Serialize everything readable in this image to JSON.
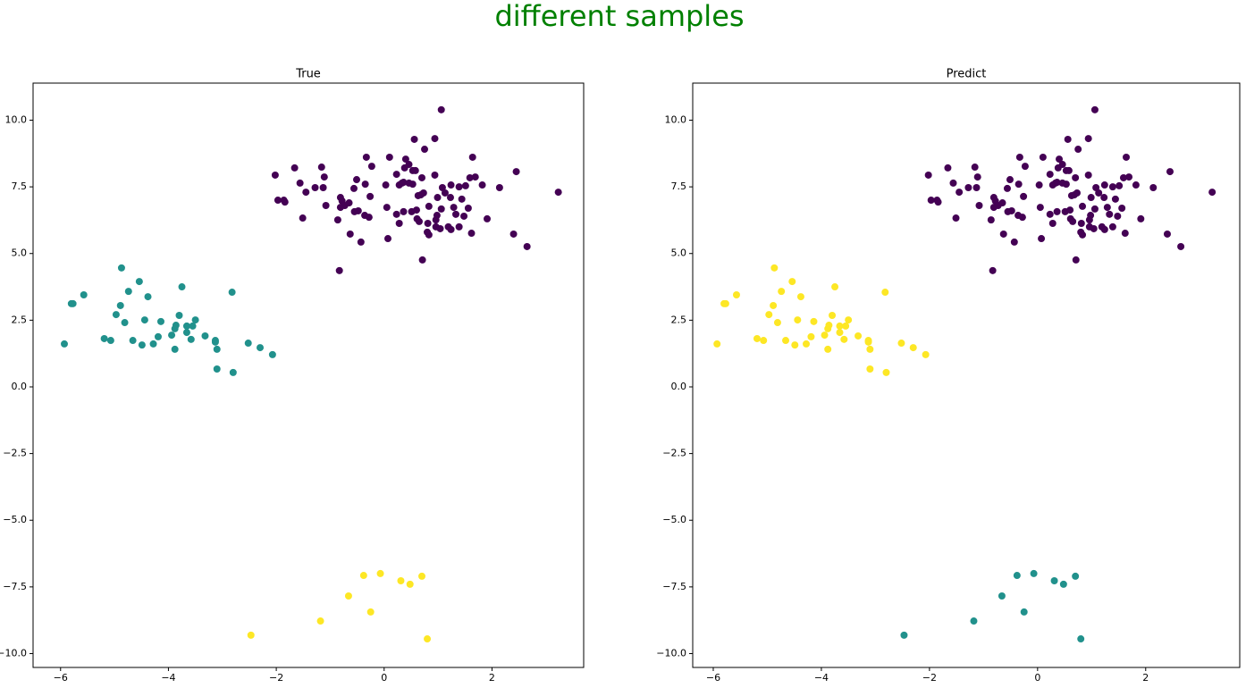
{
  "title": "different samples",
  "chart_data": [
    {
      "type": "scatter",
      "title": "True",
      "xlim": [
        -6.51,
        3.7
      ],
      "ylim": [
        -10.52,
        11.39
      ],
      "xticks": [
        {
          "value": -6,
          "label": "−6"
        },
        {
          "value": -4,
          "label": "−4"
        },
        {
          "value": -2,
          "label": "−2"
        },
        0,
        2
      ],
      "yticks": [
        {
          "value": 10,
          "label": "10.0"
        },
        7.5,
        {
          "value": 5,
          "label": "5.0"
        },
        2.5,
        {
          "value": 0,
          "label": "0.0"
        },
        {
          "value": -2.5,
          "label": "−2.5"
        },
        {
          "value": -5,
          "label": "−5.0"
        },
        {
          "value": -7.5,
          "label": "−7.5"
        },
        {
          "value": -10,
          "label": "−10.0"
        }
      ],
      "series": [
        {
          "color": "#440154",
          "x": [
            1.06,
            0.56,
            0.94,
            0.75,
            1.64,
            -0.33,
            0.1,
            0.4,
            -1.66,
            -1.16,
            -0.23,
            0.38,
            0.46,
            0.53,
            0.58,
            2.45,
            0.23,
            -2.02,
            -1.11,
            0.94,
            1.69,
            0.7,
            0.36,
            -1.56,
            -0.51,
            -0.35,
            0.03,
            0.28,
            0.33,
            0.46,
            0.53,
            1.08,
            1.24,
            1.39,
            1.51,
            1.59,
            1.82,
            2.14,
            -1.28,
            -1.13,
            -1.45,
            3.23,
            -1.86,
            -1.84,
            -0.56,
            -0.26,
            0.73,
            0.63,
            0.68,
            1.13,
            0.99,
            1.44,
            1.23,
            -0.81,
            -0.78,
            -0.73,
            -0.65,
            -0.81,
            -1.08,
            -0.86,
            -0.48,
            -0.55,
            -0.36,
            -0.28,
            0.05,
            0.23,
            0.36,
            0.51,
            0.6,
            0.61,
            0.65,
            0.83,
            0.98,
            1.06,
            1.29,
            1.33,
            1.48,
            1.56,
            1.91,
            -1.97,
            -1.51,
            0.28,
            0.81,
            0.96,
            1.19,
            0.96,
            1.04,
            1.39,
            0.8,
            0.83,
            1.62,
            -0.63,
            0.07,
            -0.43,
            1.24,
            2.4,
            2.65,
            0.71,
            -0.83
          ],
          "y": [
            10.39,
            9.28,
            9.31,
            8.91,
            8.61,
            8.61,
            8.61,
            8.54,
            8.21,
            8.24,
            8.27,
            8.21,
            8.34,
            8.11,
            8.11,
            8.07,
            7.97,
            7.94,
            7.87,
            7.94,
            7.87,
            7.84,
            7.67,
            7.64,
            7.77,
            7.6,
            7.57,
            7.57,
            7.64,
            7.64,
            7.6,
            7.47,
            7.57,
            7.5,
            7.54,
            7.84,
            7.57,
            7.47,
            7.47,
            7.47,
            7.3,
            7.3,
            7.0,
            6.93,
            7.44,
            7.14,
            7.27,
            7.17,
            7.2,
            7.27,
            7.1,
            7.04,
            7.1,
            7.1,
            6.97,
            6.8,
            6.9,
            6.73,
            6.8,
            6.26,
            6.6,
            6.57,
            6.43,
            6.36,
            6.73,
            6.47,
            6.57,
            6.57,
            6.63,
            6.3,
            6.2,
            6.77,
            6.43,
            6.67,
            6.73,
            6.47,
            6.4,
            6.7,
            6.3,
            7.0,
            6.33,
            6.13,
            6.13,
            6.26,
            6.0,
            6.0,
            5.93,
            6.0,
            5.8,
            5.7,
            5.76,
            5.73,
            5.56,
            5.43,
            5.9,
            5.73,
            5.26,
            4.76,
            4.36
          ]
        },
        {
          "color": "#21918c",
          "x": [
            -5.93,
            -5.8,
            -5.77,
            -5.57,
            -5.19,
            -5.07,
            -4.97,
            -4.89,
            -4.87,
            -4.81,
            -4.74,
            -4.66,
            -4.54,
            -4.49,
            -4.44,
            -4.38,
            -4.28,
            -4.19,
            -4.14,
            -3.94,
            -3.88,
            -3.88,
            -3.86,
            -3.8,
            -3.75,
            -3.66,
            -3.66,
            -3.58,
            -3.55,
            -3.5,
            -3.32,
            -3.13,
            -3.13,
            -3.1,
            -3.1,
            -2.82,
            -2.8,
            -2.52,
            -2.3,
            -2.07
          ],
          "y": [
            1.61,
            3.12,
            3.12,
            3.45,
            1.81,
            1.74,
            2.71,
            3.05,
            4.46,
            2.41,
            3.58,
            1.74,
            3.95,
            1.57,
            2.51,
            3.38,
            1.61,
            1.88,
            2.45,
            1.94,
            2.18,
            1.41,
            2.31,
            2.68,
            3.75,
            2.28,
            2.04,
            1.78,
            2.28,
            2.51,
            1.91,
            1.74,
            1.68,
            1.41,
            0.67,
            3.55,
            0.54,
            1.64,
            1.47,
            1.21
          ]
        },
        {
          "color": "#fde725",
          "x": [
            -2.47,
            -1.18,
            -0.66,
            -0.38,
            -0.25,
            -0.07,
            0.31,
            0.48,
            0.7,
            0.8
          ],
          "y": [
            -9.31,
            -8.78,
            -7.84,
            -7.07,
            -8.44,
            -7.0,
            -7.27,
            -7.4,
            -7.1,
            -9.45
          ]
        }
      ]
    },
    {
      "type": "scatter",
      "title": "Predict",
      "xlim": [
        -6.38,
        3.74
      ],
      "ylim": [
        -10.52,
        11.39
      ],
      "xticks": [
        {
          "value": -6,
          "label": "−6"
        },
        {
          "value": -4,
          "label": "−4"
        },
        {
          "value": -2,
          "label": "−2"
        },
        0,
        2
      ],
      "yticks": [
        {
          "value": 10,
          "label": "10.0"
        },
        7.5,
        {
          "value": 5,
          "label": "5.0"
        },
        2.5,
        {
          "value": 0,
          "label": "0.0"
        },
        {
          "value": -2.5,
          "label": "−2.5"
        },
        {
          "value": -5,
          "label": "−5.0"
        },
        {
          "value": -7.5,
          "label": "−7.5"
        },
        {
          "value": -10,
          "label": "−10.0"
        }
      ],
      "series": [
        {
          "color": "#440154",
          "x": [
            1.06,
            0.56,
            0.94,
            0.75,
            1.64,
            -0.33,
            0.1,
            0.4,
            -1.66,
            -1.16,
            -0.23,
            0.38,
            0.46,
            0.53,
            0.58,
            2.45,
            0.23,
            -2.02,
            -1.11,
            0.94,
            1.69,
            0.7,
            0.36,
            -1.56,
            -0.51,
            -0.35,
            0.03,
            0.28,
            0.33,
            0.46,
            0.53,
            1.08,
            1.24,
            1.39,
            1.51,
            1.59,
            1.82,
            2.14,
            -1.28,
            -1.13,
            -1.45,
            3.23,
            -1.86,
            -1.84,
            -0.56,
            -0.26,
            0.73,
            0.63,
            0.68,
            1.13,
            0.99,
            1.44,
            1.23,
            -0.81,
            -0.78,
            -0.73,
            -0.65,
            -0.81,
            -1.08,
            -0.86,
            -0.48,
            -0.55,
            -0.36,
            -0.28,
            0.05,
            0.23,
            0.36,
            0.51,
            0.6,
            0.61,
            0.65,
            0.83,
            0.98,
            1.06,
            1.29,
            1.33,
            1.48,
            1.56,
            1.91,
            -1.97,
            -1.51,
            0.28,
            0.81,
            0.96,
            1.19,
            0.96,
            1.04,
            1.39,
            0.8,
            0.83,
            1.62,
            -0.63,
            0.07,
            -0.43,
            1.24,
            2.4,
            2.65,
            0.71,
            -0.83
          ],
          "y": [
            10.39,
            9.28,
            9.31,
            8.91,
            8.61,
            8.61,
            8.61,
            8.54,
            8.21,
            8.24,
            8.27,
            8.21,
            8.34,
            8.11,
            8.11,
            8.07,
            7.97,
            7.94,
            7.87,
            7.94,
            7.87,
            7.84,
            7.67,
            7.64,
            7.77,
            7.6,
            7.57,
            7.57,
            7.64,
            7.64,
            7.6,
            7.47,
            7.57,
            7.5,
            7.54,
            7.84,
            7.57,
            7.47,
            7.47,
            7.47,
            7.3,
            7.3,
            7.0,
            6.93,
            7.44,
            7.14,
            7.27,
            7.17,
            7.2,
            7.27,
            7.1,
            7.04,
            7.1,
            7.1,
            6.97,
            6.8,
            6.9,
            6.73,
            6.8,
            6.26,
            6.6,
            6.57,
            6.43,
            6.36,
            6.73,
            6.47,
            6.57,
            6.57,
            6.63,
            6.3,
            6.2,
            6.77,
            6.43,
            6.67,
            6.73,
            6.47,
            6.4,
            6.7,
            6.3,
            7.0,
            6.33,
            6.13,
            6.13,
            6.26,
            6.0,
            6.0,
            5.93,
            6.0,
            5.8,
            5.7,
            5.76,
            5.73,
            5.56,
            5.43,
            5.9,
            5.73,
            5.26,
            4.76,
            4.36
          ]
        },
        {
          "color": "#fde725",
          "x": [
            -5.93,
            -5.8,
            -5.77,
            -5.57,
            -5.19,
            -5.07,
            -4.97,
            -4.89,
            -4.87,
            -4.81,
            -4.74,
            -4.66,
            -4.54,
            -4.49,
            -4.44,
            -4.38,
            -4.28,
            -4.19,
            -4.14,
            -3.94,
            -3.88,
            -3.88,
            -3.86,
            -3.8,
            -3.75,
            -3.66,
            -3.66,
            -3.58,
            -3.55,
            -3.5,
            -3.32,
            -3.13,
            -3.13,
            -3.1,
            -3.1,
            -2.82,
            -2.8,
            -2.52,
            -2.3,
            -2.07
          ],
          "y": [
            1.61,
            3.12,
            3.12,
            3.45,
            1.81,
            1.74,
            2.71,
            3.05,
            4.46,
            2.41,
            3.58,
            1.74,
            3.95,
            1.57,
            2.51,
            3.38,
            1.61,
            1.88,
            2.45,
            1.94,
            2.18,
            1.41,
            2.31,
            2.68,
            3.75,
            2.28,
            2.04,
            1.78,
            2.28,
            2.51,
            1.91,
            1.74,
            1.68,
            1.41,
            0.67,
            3.55,
            0.54,
            1.64,
            1.47,
            1.21
          ]
        },
        {
          "color": "#21918c",
          "x": [
            -2.47,
            -1.18,
            -0.66,
            -0.38,
            -0.25,
            -0.07,
            0.31,
            0.48,
            0.7,
            0.8
          ],
          "y": [
            -9.31,
            -8.78,
            -7.84,
            -7.07,
            -8.44,
            -7.0,
            -7.27,
            -7.4,
            -7.1,
            -9.45
          ]
        }
      ]
    }
  ]
}
